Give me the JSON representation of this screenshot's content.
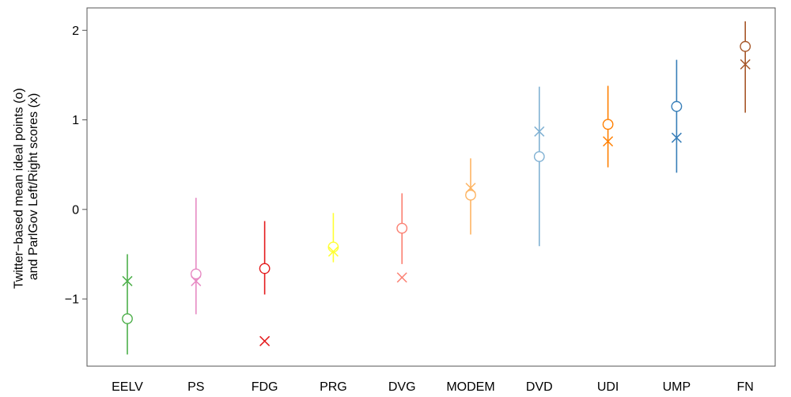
{
  "chart_data": {
    "type": "scatter",
    "title": "",
    "ylabel_lines": [
      "Twitter−based mean ideal points (o)",
      "and ParlGov Left/Right scores (x)"
    ],
    "xlabel": "",
    "ylim": [
      -1.75,
      2.25
    ],
    "yticks": [
      2,
      1,
      0,
      -1
    ],
    "ytick_labels": [
      "2",
      "1",
      "0",
      "−1"
    ],
    "grid": false,
    "categories": [
      "EELV",
      "PS",
      "FDG",
      "PRG",
      "DVG",
      "MODEM",
      "DVD",
      "UDI",
      "UMP",
      "FN"
    ],
    "colors": [
      "#4DAF4A",
      "#E78AC3",
      "#E41A1C",
      "#FFFF33",
      "#FB8072",
      "#FDB462",
      "#80B1D3",
      "#FF7F00",
      "#377EB8",
      "#A65628"
    ],
    "ideal_points": [
      -1.22,
      -0.72,
      -0.66,
      -0.42,
      -0.21,
      0.16,
      0.59,
      0.95,
      1.15,
      1.82
    ],
    "ci_low": [
      -1.62,
      -1.17,
      -0.95,
      -0.59,
      -0.61,
      -0.28,
      -0.41,
      0.47,
      0.41,
      1.08
    ],
    "ci_high": [
      -0.5,
      0.13,
      -0.13,
      -0.04,
      0.18,
      0.57,
      1.37,
      1.38,
      1.67,
      2.1
    ],
    "parlgov_scores": [
      -0.8,
      -0.8,
      -1.47,
      -0.47,
      -0.76,
      0.24,
      0.87,
      0.76,
      0.8,
      1.62
    ]
  }
}
